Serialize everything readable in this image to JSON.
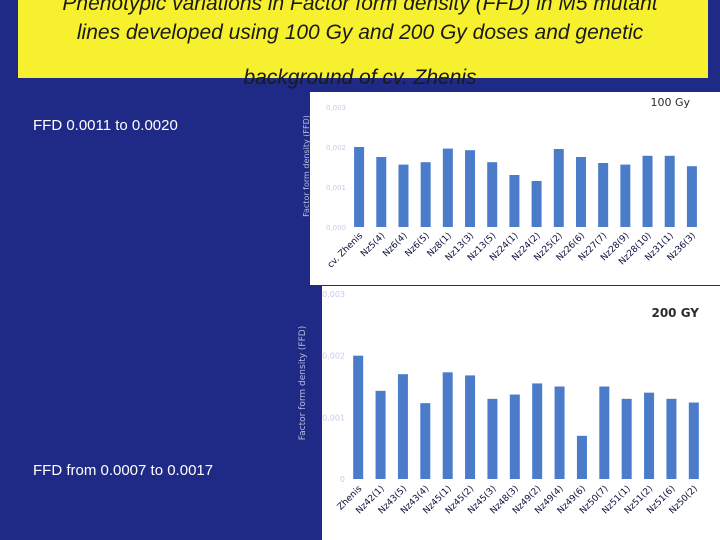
{
  "title": {
    "line1": "Phenotypic variations  in Factor form density (FFD) in M5 mutant",
    "line2": "lines developed using 100 Gy and 200 Gy doses and genetic",
    "line3": "background of cv. Zhenis"
  },
  "notes": {
    "range_100": "FFD  0.0011 to 0.0020",
    "range_200": "FFD from 0.0007 to 0.0017"
  },
  "colors": {
    "background": "#1f2a86",
    "title_box": "#f6f02e",
    "plot_area": "#ffffff",
    "bar": "#4a7cc9"
  },
  "chart_data": [
    {
      "type": "bar",
      "title": "100 Gy",
      "ylabel": "Factor form density (FFD)",
      "ylim": [
        0,
        0.003
      ],
      "yticks": [
        "0,000",
        "0,001",
        "0,002",
        "0,003"
      ],
      "categories": [
        "cv. Zhenis",
        "Nz5(4)",
        "Nz6(4)",
        "Nz6(5)",
        "Nz8(1)",
        "Nz13(3)",
        "Nz13(5)",
        "Nz24(1)",
        "Nz24(2)",
        "Nz25(2)",
        "Nz26(6)",
        "Nz27(7)",
        "Nz28(9)",
        "Nz28(10)",
        "Nz31(1)",
        "Nz36(3)"
      ],
      "values": [
        0.002,
        0.00175,
        0.00156,
        0.00162,
        0.00196,
        0.00192,
        0.00162,
        0.0013,
        0.00115,
        0.00195,
        0.00175,
        0.0016,
        0.00156,
        0.00178,
        0.00178,
        0.00152
      ]
    },
    {
      "type": "bar",
      "title": "200 GY",
      "ylabel": "Factor form density (FFD)",
      "ylim": [
        0,
        0.003
      ],
      "yticks": [
        "0",
        "0,001",
        "0,002",
        "0,003"
      ],
      "categories": [
        "Zhenis",
        "Nz42(1)",
        "Nz43(5)",
        "Nz43(4)",
        "Nz45(1)",
        "Nz45(2)",
        "Nz45(3)",
        "Nz48(3)",
        "Nz49(2)",
        "Nz49(4)",
        "Nz49(6)",
        "Nz50(7)",
        "Nz51(1)",
        "Nz51(2)",
        "Nz51(6)",
        "Nz50(2)"
      ],
      "values": [
        0.002,
        0.00143,
        0.0017,
        0.00123,
        0.00173,
        0.00168,
        0.0013,
        0.00137,
        0.00155,
        0.0015,
        0.0007,
        0.0015,
        0.0013,
        0.0014,
        0.0013,
        0.00124
      ]
    }
  ]
}
